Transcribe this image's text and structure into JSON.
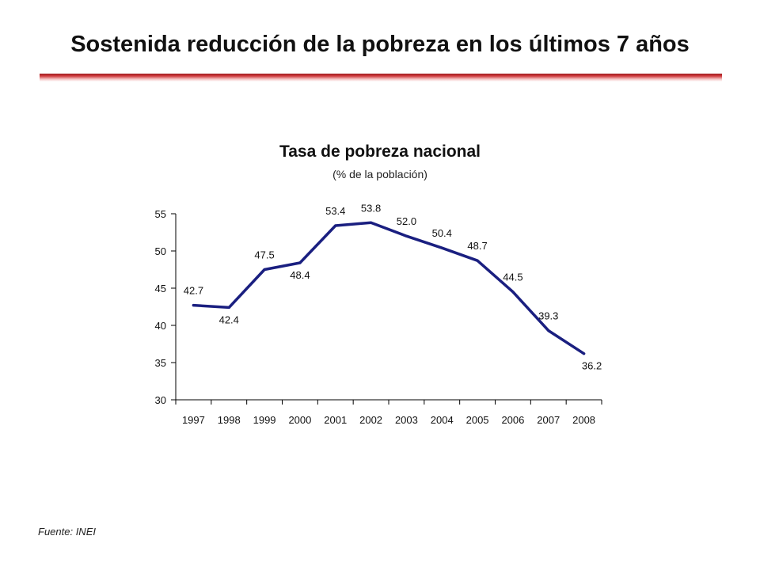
{
  "slide": {
    "title": "Sostenida reducción de la pobreza en los últimos 7 años",
    "source": "Fuente: INEI",
    "accent_color": "#c8102e"
  },
  "chart_data": {
    "type": "line",
    "title": "Tasa de pobreza nacional",
    "subtitle": "(% de la población)",
    "xlabel": "",
    "ylabel": "",
    "x": [
      "1997",
      "1998",
      "1999",
      "2000",
      "2001",
      "2002",
      "2003",
      "2004",
      "2005",
      "2006",
      "2007",
      "2008"
    ],
    "series": [
      {
        "values": [
          42.7,
          42.4,
          47.5,
          48.4,
          53.4,
          53.8,
          52.0,
          50.4,
          48.7,
          44.5,
          39.3,
          36.2
        ],
        "labels": [
          "42.7",
          "42.4",
          "47.5",
          "48.4",
          "53.4",
          "53.8",
          "52.0",
          "50.4",
          "48.7",
          "44.5",
          "39.3",
          "36.2"
        ],
        "color": "#1a1f80"
      }
    ],
    "ylim": [
      30,
      55
    ],
    "yticks": [
      "30",
      "35",
      "40",
      "45",
      "50",
      "55"
    ],
    "grid": false,
    "legend": "none"
  }
}
